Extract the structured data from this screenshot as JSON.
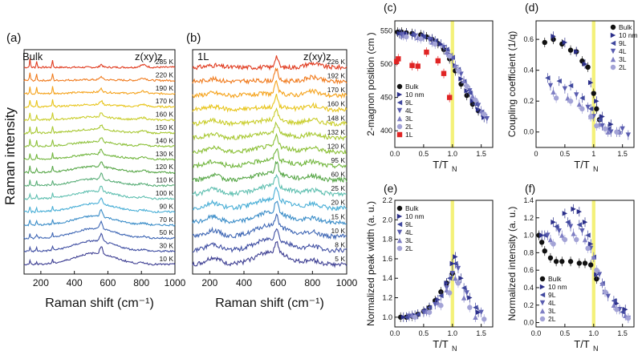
{
  "chart_data": [
    {
      "type": "line",
      "panel": "(a)",
      "sample": "Bulk",
      "geometry": "z(xy)z",
      "xlabel": "Raman shift (cm⁻¹)",
      "ylabel": "Raman intensity",
      "xlim": [
        100,
        1000
      ],
      "xticks": [
        "200",
        "400",
        "600",
        "800",
        "1000"
      ],
      "temperatures": [
        "285 K",
        "220 K",
        "190 K",
        "170 K",
        "160 K",
        "150 K",
        "140 K",
        "130 K",
        "120 K",
        "110 K",
        "100 K",
        "90 K",
        "70 K",
        "50 K",
        "30 K",
        "10 K"
      ],
      "colors": [
        "#e03a1e",
        "#f07a1c",
        "#f5a21a",
        "#e8c51c",
        "#c9cd2a",
        "#a8c832",
        "#8cc038",
        "#72b63e",
        "#5aa84a",
        "#5aae78",
        "#5fbfb0",
        "#48aed6",
        "#3b8dc8",
        "#3e66b4",
        "#3f4ea2",
        "#3d3e92"
      ]
    },
    {
      "type": "line",
      "panel": "(b)",
      "sample": "1L",
      "geometry": "z(xy)z",
      "xlabel": "Raman shift (cm⁻¹)",
      "xlim": [
        100,
        1000
      ],
      "xticks": [
        "200",
        "400",
        "600",
        "800",
        "1000"
      ],
      "temperatures": [
        "226 K",
        "192 K",
        "170 K",
        "160 K",
        "148 K",
        "132 K",
        "120 K",
        "95 K",
        "60 K",
        "25 K",
        "20 K",
        "15 K",
        "10 K",
        "8 K",
        "5 K"
      ],
      "colors": [
        "#e03a1e",
        "#f07a1c",
        "#f5a21a",
        "#e8c51c",
        "#c9cd2a",
        "#a8c832",
        "#8cc038",
        "#72b63e",
        "#5aa84a",
        "#5fbfb0",
        "#48aed6",
        "#3b8dc8",
        "#3e66b4",
        "#3f4ea2",
        "#3d3e92"
      ]
    },
    {
      "type": "scatter",
      "panel": "(c)",
      "xlabel": "T/T",
      "xlabel_sub": "N",
      "ylabel": "2-magnon position (cm  )",
      "xlim": [
        0,
        1.7
      ],
      "ylim": [
        375,
        565
      ],
      "xticks": [
        0,
        0.5,
        1,
        1.5
      ],
      "yticks": [
        400,
        450,
        500,
        550
      ],
      "x_tick_labels": [
        "0.0",
        "0.5",
        "1.0",
        "1.5"
      ],
      "y_tick_labels": [
        "400",
        "450",
        "500",
        "550"
      ],
      "band": [
        0.97,
        1.03
      ],
      "legend": [
        "Bulk",
        "10 nm",
        "9L",
        "4L",
        "3L",
        "2L",
        "1L"
      ],
      "series": [
        {
          "name": "Bulk",
          "marker": "circle",
          "color": "#111111",
          "x": [
            0.05,
            0.12,
            0.2,
            0.3,
            0.45,
            0.55,
            0.65,
            0.75,
            0.85,
            0.95,
            1.05,
            1.15,
            1.25,
            1.35,
            1.45
          ],
          "y": [
            548,
            548,
            547,
            546,
            544,
            541,
            537,
            531,
            522,
            508,
            490,
            470,
            453,
            440,
            430
          ]
        },
        {
          "name": "10 nm",
          "marker": "tri-right",
          "color": "#2b2f8a",
          "x": [
            0.08,
            0.2,
            0.35,
            0.5,
            0.65,
            0.8,
            0.95,
            1.05,
            1.15,
            1.25,
            1.35,
            1.45,
            1.55
          ],
          "y": [
            546,
            546,
            545,
            543,
            538,
            530,
            515,
            498,
            478,
            460,
            445,
            432,
            420
          ]
        },
        {
          "name": "9L",
          "marker": "tri-left",
          "color": "#40489e",
          "x": [
            0.1,
            0.3,
            0.5,
            0.7,
            0.9,
            1.0,
            1.1,
            1.2,
            1.3,
            1.4,
            1.5
          ],
          "y": [
            545,
            544,
            541,
            535,
            522,
            510,
            492,
            474,
            457,
            440,
            428
          ]
        },
        {
          "name": "4L",
          "marker": "tri-down",
          "color": "#5a5db0",
          "x": [
            0.12,
            0.35,
            0.6,
            0.85,
            1.0,
            1.15,
            1.3,
            1.45,
            1.6
          ],
          "y": [
            544,
            542,
            537,
            525,
            508,
            485,
            460,
            438,
            418
          ]
        },
        {
          "name": "3L",
          "marker": "tri-up",
          "color": "#7f7fc4",
          "x": [
            0.15,
            0.4,
            0.65,
            0.9,
            1.05,
            1.2,
            1.35,
            1.5
          ],
          "y": [
            543,
            540,
            533,
            518,
            498,
            475,
            452,
            430
          ]
        },
        {
          "name": "2L",
          "marker": "circle",
          "color": "#a3a3d6",
          "x": [
            0.2,
            0.45,
            0.7,
            0.95,
            1.1,
            1.25,
            1.4,
            1.55
          ],
          "y": [
            541,
            538,
            530,
            512,
            490,
            467,
            446,
            425
          ]
        },
        {
          "name": "1L",
          "marker": "square",
          "color": "#e02424",
          "x": [
            0.03,
            0.06,
            0.3,
            0.4,
            0.55,
            0.75,
            0.85,
            0.95
          ],
          "y": [
            504,
            508,
            498,
            497,
            518,
            505,
            486,
            450
          ]
        }
      ]
    },
    {
      "type": "scatter",
      "panel": "(d)",
      "xlabel": "T/T",
      "xlabel_sub": "N",
      "ylabel": "Coupling coefficient (1/q)",
      "xlim": [
        0,
        1.7
      ],
      "ylim": [
        -0.1,
        0.72
      ],
      "xticks": [
        0,
        0.5,
        1,
        1.5
      ],
      "yticks": [
        0,
        0.2,
        0.4,
        0.6
      ],
      "x_tick_labels": [
        "0",
        "0.5",
        "1",
        "1.5"
      ],
      "y_tick_labels": [
        "0.0",
        "0.2",
        "0.4",
        "0.6"
      ],
      "band": [
        0.97,
        1.03
      ],
      "legend": [
        "Bulk",
        "10 nm",
        "9L",
        "4L",
        "3L",
        "2L"
      ],
      "series": [
        {
          "name": "Bulk",
          "marker": "circle",
          "color": "#111111",
          "x": [
            0.15,
            0.3,
            0.45,
            0.6,
            0.7,
            0.8,
            0.9,
            1.0,
            1.05,
            1.1
          ],
          "y": [
            0.58,
            0.6,
            0.57,
            0.53,
            0.52,
            0.46,
            0.42,
            0.25,
            0.15,
            0.08
          ]
        },
        {
          "name": "10 nm",
          "marker": "tri-right",
          "color": "#2b2f8a",
          "x": [
            0.3,
            0.5,
            0.7,
            0.85,
            0.95,
            1.05,
            1.15,
            1.3,
            1.45
          ],
          "y": [
            0.62,
            0.58,
            0.52,
            0.44,
            0.32,
            0.2,
            0.1,
            0.05,
            0.0
          ]
        },
        {
          "name": "9L",
          "marker": "tri-left",
          "color": "#40489e",
          "x": [
            0.2,
            0.4,
            0.6,
            0.8,
            0.95,
            1.1,
            1.25,
            1.4
          ],
          "y": [
            0.35,
            0.33,
            0.3,
            0.22,
            0.15,
            0.08,
            0.02,
            0.0
          ]
        },
        {
          "name": "4L",
          "marker": "tri-down",
          "color": "#5a5db0",
          "x": [
            0.25,
            0.5,
            0.7,
            0.9,
            1.0,
            1.15,
            1.3,
            1.5,
            1.6
          ],
          "y": [
            0.3,
            0.28,
            0.24,
            0.16,
            0.1,
            0.04,
            0.0,
            0.02,
            -0.02
          ]
        },
        {
          "name": "3L",
          "marker": "tri-up",
          "color": "#7f7fc4",
          "x": [
            0.3,
            0.55,
            0.75,
            0.95,
            1.1,
            1.25,
            1.45
          ],
          "y": [
            0.26,
            0.22,
            0.18,
            0.1,
            0.05,
            0.0,
            0.0
          ]
        },
        {
          "name": "2L",
          "marker": "circle",
          "color": "#a3a3d6",
          "x": [
            0.35,
            0.6,
            0.8,
            0.95,
            1.05,
            1.2,
            1.4
          ],
          "y": [
            0.22,
            0.2,
            0.15,
            0.1,
            0.04,
            0.02,
            0.0
          ]
        }
      ]
    },
    {
      "type": "scatter",
      "panel": "(e)",
      "xlabel": "T/T",
      "xlabel_sub": "N",
      "ylabel": "Normalized peak width (a. u.)",
      "xlim": [
        0,
        1.7
      ],
      "ylim": [
        0.9,
        2.2
      ],
      "xticks": [
        0,
        0.5,
        1,
        1.5
      ],
      "yticks": [
        1.0,
        1.2,
        1.4,
        1.6,
        1.8,
        2.0,
        2.2
      ],
      "x_tick_labels": [
        "0.0",
        "0.5",
        "1.0",
        "1.5"
      ],
      "y_tick_labels": [
        "1.0",
        "1.2",
        "1.4",
        "1.6",
        "1.8",
        "2.0",
        "2.2"
      ],
      "band": [
        0.97,
        1.03
      ],
      "legend": [
        "Bulk",
        "10 nm",
        "9L",
        "4L",
        "3L",
        "2L"
      ],
      "series": [
        {
          "name": "Bulk",
          "marker": "circle",
          "color": "#111111",
          "x": [
            0.1,
            0.2,
            0.3,
            0.4,
            0.5,
            0.6,
            0.7,
            0.8,
            0.9,
            1.0
          ],
          "y": [
            1.0,
            1.0,
            1.01,
            1.03,
            1.06,
            1.1,
            1.17,
            1.26,
            1.35,
            1.45
          ]
        },
        {
          "name": "10 nm",
          "marker": "tri-right",
          "color": "#2b2f8a",
          "x": [
            0.15,
            0.35,
            0.55,
            0.75,
            0.9,
            1.0,
            1.05,
            1.15,
            1.3,
            1.45
          ],
          "y": [
            1.0,
            1.02,
            1.07,
            1.18,
            1.35,
            1.55,
            1.62,
            1.4,
            1.2,
            1.05
          ]
        },
        {
          "name": "9L",
          "marker": "tri-left",
          "color": "#40489e",
          "x": [
            0.2,
            0.4,
            0.6,
            0.8,
            0.95,
            1.05,
            1.2,
            1.4
          ],
          "y": [
            1.0,
            1.03,
            1.1,
            1.22,
            1.4,
            1.55,
            1.3,
            1.1
          ]
        },
        {
          "name": "4L",
          "marker": "tri-down",
          "color": "#5a5db0",
          "x": [
            0.25,
            0.5,
            0.7,
            0.9,
            1.0,
            1.1,
            1.25,
            1.5
          ],
          "y": [
            1.01,
            1.05,
            1.13,
            1.3,
            1.45,
            1.5,
            1.25,
            1.05
          ]
        },
        {
          "name": "3L",
          "marker": "tri-up",
          "color": "#7f7fc4",
          "x": [
            0.3,
            0.55,
            0.75,
            0.9,
            1.05,
            1.2,
            1.4
          ],
          "y": [
            1.02,
            1.06,
            1.15,
            1.28,
            1.4,
            1.2,
            1.0
          ]
        },
        {
          "name": "2L",
          "marker": "circle",
          "color": "#a3a3d6",
          "x": [
            0.35,
            0.6,
            0.8,
            0.95,
            1.1,
            1.3,
            1.55
          ],
          "y": [
            1.0,
            1.05,
            1.12,
            1.25,
            1.35,
            1.1,
            0.98
          ]
        }
      ]
    },
    {
      "type": "scatter",
      "panel": "(f)",
      "xlabel": "T/T",
      "xlabel_sub": "N",
      "ylabel": "Normalized intensity (a. u.)",
      "xlim": [
        0,
        1.7
      ],
      "ylim": [
        -0.05,
        1.4
      ],
      "xticks": [
        0,
        0.5,
        1,
        1.5
      ],
      "yticks": [
        0,
        0.2,
        0.4,
        0.6,
        0.8,
        1.0,
        1.2,
        1.4
      ],
      "x_tick_labels": [
        "0.0",
        "0.5",
        "1.0",
        "1.5"
      ],
      "y_tick_labels": [
        "0.0",
        "0.2",
        "0.4",
        "0.6",
        "0.8",
        "1.0",
        "1.2",
        "1.4"
      ],
      "band": [
        0.97,
        1.03
      ],
      "legend": [
        "Bulk",
        "10 nm",
        "9L",
        "4L",
        "3L",
        "2L"
      ],
      "series": [
        {
          "name": "Bulk",
          "marker": "circle",
          "color": "#111111",
          "x": [
            0.05,
            0.1,
            0.15,
            0.25,
            0.35,
            0.45,
            0.6,
            0.75,
            0.85,
            0.95,
            1.05
          ],
          "y": [
            1.0,
            0.92,
            0.82,
            0.74,
            0.7,
            0.7,
            0.7,
            0.68,
            0.68,
            0.66,
            0.5
          ]
        },
        {
          "name": "10 nm",
          "marker": "tri-right",
          "color": "#2b2f8a",
          "x": [
            0.1,
            0.3,
            0.5,
            0.65,
            0.75,
            0.85,
            0.95,
            1.05,
            1.2,
            1.4,
            1.55
          ],
          "y": [
            1.0,
            1.15,
            1.25,
            1.3,
            1.27,
            1.15,
            0.9,
            0.55,
            0.35,
            0.22,
            0.15
          ]
        },
        {
          "name": "9L",
          "marker": "tri-left",
          "color": "#40489e",
          "x": [
            0.15,
            0.35,
            0.55,
            0.75,
            0.9,
            1.0,
            1.15,
            1.35,
            1.5
          ],
          "y": [
            1.0,
            1.1,
            1.15,
            1.12,
            1.0,
            0.75,
            0.45,
            0.25,
            0.12
          ]
        },
        {
          "name": "4L",
          "marker": "tri-down",
          "color": "#5a5db0",
          "x": [
            0.2,
            0.4,
            0.6,
            0.8,
            0.95,
            1.1,
            1.25,
            1.45,
            1.6
          ],
          "y": [
            1.0,
            1.05,
            1.1,
            1.05,
            0.85,
            0.55,
            0.3,
            0.15,
            0.05
          ]
        },
        {
          "name": "3L",
          "marker": "tri-up",
          "color": "#7f7fc4",
          "x": [
            0.25,
            0.45,
            0.65,
            0.85,
            1.0,
            1.15,
            1.35,
            1.55
          ],
          "y": [
            0.95,
            1.0,
            1.02,
            0.95,
            0.75,
            0.45,
            0.2,
            0.08
          ]
        },
        {
          "name": "2L",
          "marker": "circle",
          "color": "#a3a3d6",
          "x": [
            0.3,
            0.5,
            0.7,
            0.9,
            1.05,
            1.2,
            1.4,
            1.6
          ],
          "y": [
            0.9,
            0.95,
            0.95,
            0.85,
            0.6,
            0.35,
            0.15,
            0.05
          ]
        }
      ]
    }
  ]
}
